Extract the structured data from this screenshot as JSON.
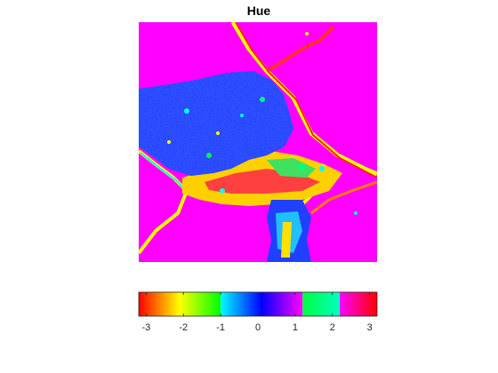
{
  "chart_data": {
    "type": "heatmap",
    "title": "Hue",
    "colorbar": {
      "orientation": "horizontal",
      "placement": "below",
      "range": [
        -3.2,
        3.2
      ],
      "ticks": [
        -3,
        -2,
        -1,
        0,
        1,
        2,
        3
      ],
      "tick_labels": [
        "-3",
        "-2",
        "-1",
        "0",
        "1",
        "2",
        "3"
      ],
      "bands": [
        {
          "from": -3.2,
          "to": -1.0,
          "colors": [
            "#ff0000",
            "#ff8000",
            "#ffff00",
            "#80ff00",
            "#00ff00"
          ]
        },
        {
          "from": -1.0,
          "to": 1.2,
          "colors": [
            "#00ffff",
            "#0080ff",
            "#0000ff",
            "#8000ff",
            "#ff00ff"
          ]
        },
        {
          "from": 1.2,
          "to": 2.2,
          "colors": [
            "#00ff40",
            "#00ffc0"
          ]
        },
        {
          "from": 2.2,
          "to": 3.2,
          "colors": [
            "#ff00ff",
            "#ff0080",
            "#ff0000"
          ]
        }
      ]
    },
    "image": {
      "description_colors": {
        "background": "#ff00ff",
        "region": "#1a3cff",
        "veins": [
          "#ffff00",
          "#ff3030",
          "#00ffff",
          "#00ff80",
          "#ff8000"
        ]
      }
    }
  }
}
